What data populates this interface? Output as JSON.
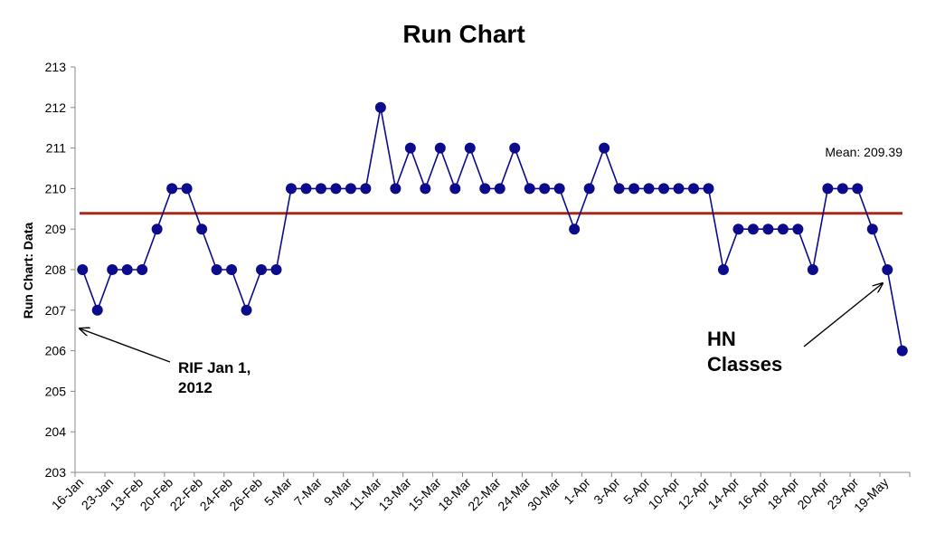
{
  "chart_data": {
    "type": "line",
    "title": "Run Chart",
    "ylabel": "Run Chart: Data",
    "xlabel": "",
    "ylim": [
      203,
      213
    ],
    "yticks": [
      203,
      204,
      205,
      206,
      207,
      208,
      209,
      210,
      211,
      212,
      213
    ],
    "x_tick_labels": [
      "16-Jan",
      "23-Jan",
      "13-Feb",
      "20-Feb",
      "22-Feb",
      "24-Feb",
      "26-Feb",
      "5-Mar",
      "7-Mar",
      "9-Mar",
      "11-Mar",
      "13-Mar",
      "15-Mar",
      "18-Mar",
      "22-Mar",
      "24-Mar",
      "30-Mar",
      "1-Apr",
      "3-Apr",
      "5-Apr",
      "10-Apr",
      "12-Apr",
      "14-Apr",
      "16-Apr",
      "18-Apr",
      "20-Apr",
      "23-Apr",
      "19-May"
    ],
    "grid": false,
    "legend": "none",
    "series": [
      {
        "values": [
          208,
          207,
          208,
          208,
          208,
          209,
          210,
          210,
          209,
          208,
          208,
          207,
          208,
          208,
          210,
          210,
          210,
          210,
          210,
          210,
          212,
          210,
          211,
          210,
          211,
          210,
          211,
          210,
          210,
          211,
          210,
          210,
          210,
          209,
          210,
          211,
          210,
          210,
          210,
          210,
          210,
          210,
          210,
          208,
          209,
          209,
          209,
          209,
          209,
          208,
          210,
          210,
          210,
          209,
          208,
          206
        ],
        "color": "#0b0b8c"
      }
    ],
    "mean": {
      "value": 209.39,
      "label": "Mean: 209.39",
      "color": "#a52a1a"
    },
    "annotations": [
      {
        "lines": [
          "RIF Jan 1,",
          "2012"
        ]
      },
      {
        "lines": [
          "HN",
          "Classes"
        ]
      }
    ]
  }
}
